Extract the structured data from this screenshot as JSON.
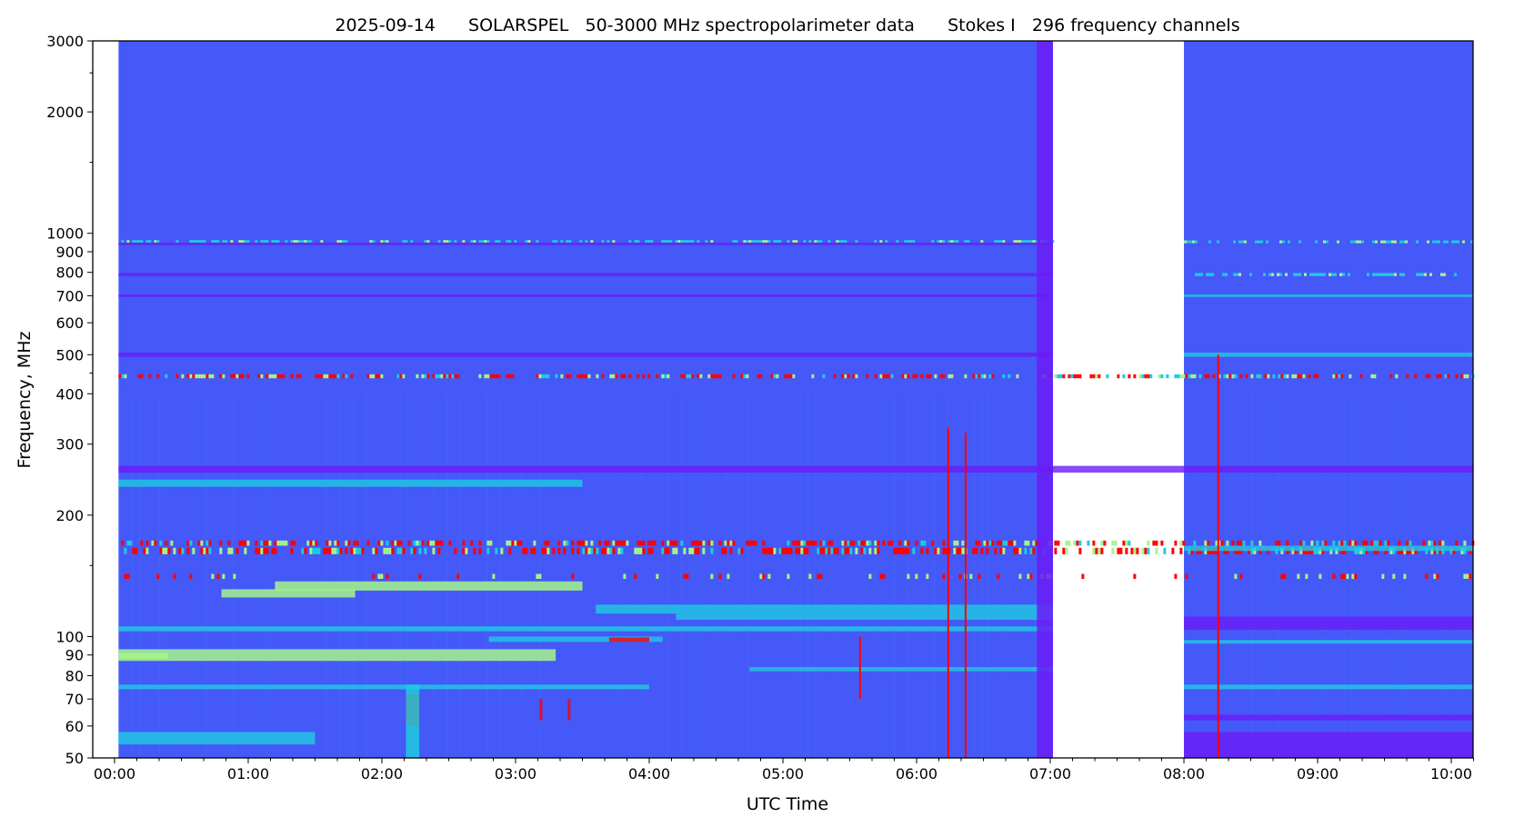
{
  "chart_data": {
    "type": "heatmap",
    "title": "2025-09-14      SOLARSPEL   50-3000 MHz spectropolarimeter data      Stokes I   296 frequency channels",
    "xlabel": "UTC Time",
    "ylabel": "Frequency, MHz",
    "yscale": "log",
    "ylim": [
      50,
      3000
    ],
    "xlim_hours": [
      -0.163,
      10.163
    ],
    "x_ticks": [
      {
        "h": 0,
        "label": "00:00"
      },
      {
        "h": 1,
        "label": "01:00"
      },
      {
        "h": 2,
        "label": "02:00"
      },
      {
        "h": 3,
        "label": "03:00"
      },
      {
        "h": 4,
        "label": "04:00"
      },
      {
        "h": 5,
        "label": "05:00"
      },
      {
        "h": 6,
        "label": "06:00"
      },
      {
        "h": 7,
        "label": "07:00"
      },
      {
        "h": 8,
        "label": "08:00"
      },
      {
        "h": 9,
        "label": "09:00"
      },
      {
        "h": 10,
        "label": "10:00"
      }
    ],
    "y_ticks": [
      {
        "f": 50,
        "label": "50"
      },
      {
        "f": 60,
        "label": "60"
      },
      {
        "f": 70,
        "label": "70"
      },
      {
        "f": 80,
        "label": "80"
      },
      {
        "f": 90,
        "label": "90"
      },
      {
        "f": 100,
        "label": "100"
      },
      {
        "f": 200,
        "label": "200"
      },
      {
        "f": 300,
        "label": "300"
      },
      {
        "f": 400,
        "label": "400"
      },
      {
        "f": 500,
        "label": "500"
      },
      {
        "f": 600,
        "label": "600"
      },
      {
        "f": 700,
        "label": "700"
      },
      {
        "f": 800,
        "label": "800"
      },
      {
        "f": 900,
        "label": "900"
      },
      {
        "f": 1000,
        "label": "1000"
      },
      {
        "f": 2000,
        "label": "2000"
      },
      {
        "f": 3000,
        "label": "3000"
      }
    ],
    "y_minor_ticks": [
      150,
      450,
      1500,
      2500
    ],
    "colormap": {
      "background": "#4558f8",
      "low": "#6a1cf6",
      "mid": "#1ecbe1",
      "high": "#a6f58a",
      "max": "#ff0000"
    },
    "data_segments": [
      {
        "start_h": 0.03,
        "end_h": 7.02
      },
      {
        "start_h": 8.0,
        "end_h": 10.163
      }
    ],
    "bands": [
      {
        "f0": 935,
        "f1": 948,
        "t0": 0.03,
        "t1": 7.02,
        "level": "low"
      },
      {
        "f0": 948,
        "f1": 962,
        "t0": 0.03,
        "t1": 7.02,
        "level": "mid",
        "dotted": true
      },
      {
        "f0": 945,
        "f1": 960,
        "t0": 8.0,
        "t1": 10.163,
        "level": "mid",
        "dotted": true
      },
      {
        "f0": 783,
        "f1": 797,
        "t0": 0.03,
        "t1": 7.02,
        "level": "low"
      },
      {
        "f0": 783,
        "f1": 797,
        "t0": 8.0,
        "t1": 10.163,
        "level": "mid",
        "dotted": true
      },
      {
        "f0": 695,
        "f1": 705,
        "t0": 0.03,
        "t1": 7.02,
        "level": "low"
      },
      {
        "f0": 695,
        "f1": 705,
        "t0": 8.0,
        "t1": 10.163,
        "level": "mid"
      },
      {
        "f0": 494,
        "f1": 506,
        "t0": 0.03,
        "t1": 7.02,
        "level": "low"
      },
      {
        "f0": 494,
        "f1": 506,
        "t0": 8.0,
        "t1": 10.163,
        "level": "mid"
      },
      {
        "f0": 437,
        "f1": 447,
        "t0": 0.03,
        "t1": 10.163,
        "level": "max",
        "dotted": true
      },
      {
        "f0": 255,
        "f1": 265,
        "t0": 0.03,
        "t1": 10.163,
        "level": "low"
      },
      {
        "f0": 235,
        "f1": 245,
        "t0": 0.03,
        "t1": 3.5,
        "level": "mid"
      },
      {
        "f0": 168,
        "f1": 173,
        "t0": 0.03,
        "t1": 10.163,
        "level": "max",
        "dotted": true
      },
      {
        "f0": 160,
        "f1": 166,
        "t0": 0.03,
        "t1": 10.163,
        "level": "max",
        "dotted": true
      },
      {
        "f0": 163,
        "f1": 168,
        "t0": 8.0,
        "t1": 10.163,
        "level": "mid"
      },
      {
        "f0": 139,
        "f1": 143,
        "t0": 0.03,
        "t1": 10.163,
        "level": "max",
        "dotted": true,
        "sparse": true
      },
      {
        "f0": 130,
        "f1": 137,
        "t0": 1.2,
        "t1": 3.5,
        "level": "high"
      },
      {
        "f0": 125,
        "f1": 131,
        "t0": 0.8,
        "t1": 1.8,
        "level": "high"
      },
      {
        "f0": 114,
        "f1": 120,
        "t0": 3.6,
        "t1": 7.02,
        "level": "mid"
      },
      {
        "f0": 110,
        "f1": 114,
        "t0": 4.2,
        "t1": 7.02,
        "level": "mid"
      },
      {
        "f0": 103,
        "f1": 106,
        "t0": 0.03,
        "t1": 7.02,
        "level": "mid"
      },
      {
        "f0": 104,
        "f1": 112,
        "t0": 8.0,
        "t1": 10.163,
        "level": "low"
      },
      {
        "f0": 97,
        "f1": 100,
        "t0": 2.8,
        "t1": 4.1,
        "level": "mid"
      },
      {
        "f0": 97,
        "f1": 99.5,
        "t0": 3.7,
        "t1": 4.0,
        "level": "max"
      },
      {
        "f0": 96,
        "f1": 98,
        "t0": 8.0,
        "t1": 10.163,
        "level": "mid"
      },
      {
        "f0": 87,
        "f1": 93,
        "t0": 0.03,
        "t1": 3.3,
        "level": "high"
      },
      {
        "f0": 88,
        "f1": 91,
        "t0": 0.03,
        "t1": 0.4,
        "level": "high"
      },
      {
        "f0": 82,
        "f1": 84,
        "t0": 4.75,
        "t1": 7.02,
        "level": "mid"
      },
      {
        "f0": 74,
        "f1": 76,
        "t0": 0.03,
        "t1": 4.0,
        "level": "mid"
      },
      {
        "f0": 74,
        "f1": 76,
        "t0": 8.0,
        "t1": 10.163,
        "level": "mid"
      },
      {
        "f0": 54,
        "f1": 58,
        "t0": 0.03,
        "t1": 1.5,
        "level": "mid"
      },
      {
        "f0": 50,
        "f1": 58,
        "t0": 8.0,
        "t1": 10.163,
        "level": "low"
      },
      {
        "f0": 62,
        "f1": 64,
        "t0": 8.0,
        "t1": 10.163,
        "level": "low"
      }
    ],
    "bursts": [
      {
        "t0": 2.18,
        "t1": 2.28,
        "f0": 60,
        "f1": 72,
        "level": "max"
      },
      {
        "t0": 2.18,
        "t1": 2.28,
        "f0": 50,
        "f1": 76,
        "level": "mid"
      },
      {
        "t0": 3.18,
        "t1": 3.2,
        "f0": 62,
        "f1": 70,
        "level": "max"
      },
      {
        "t0": 3.39,
        "t1": 3.41,
        "f0": 62,
        "f1": 70,
        "level": "max"
      },
      {
        "t0": 6.9,
        "t1": 7.02,
        "f0": 50,
        "f1": 3000,
        "level": "low"
      }
    ],
    "vertical_lines": [
      {
        "t": 6.23,
        "f0": 50,
        "f1": 330,
        "level": "max"
      },
      {
        "t": 6.36,
        "f0": 50,
        "f1": 320,
        "level": "max"
      },
      {
        "t": 5.57,
        "f0": 70,
        "f1": 100,
        "level": "max"
      },
      {
        "t": 8.25,
        "f0": 50,
        "f1": 500,
        "level": "max"
      }
    ]
  }
}
